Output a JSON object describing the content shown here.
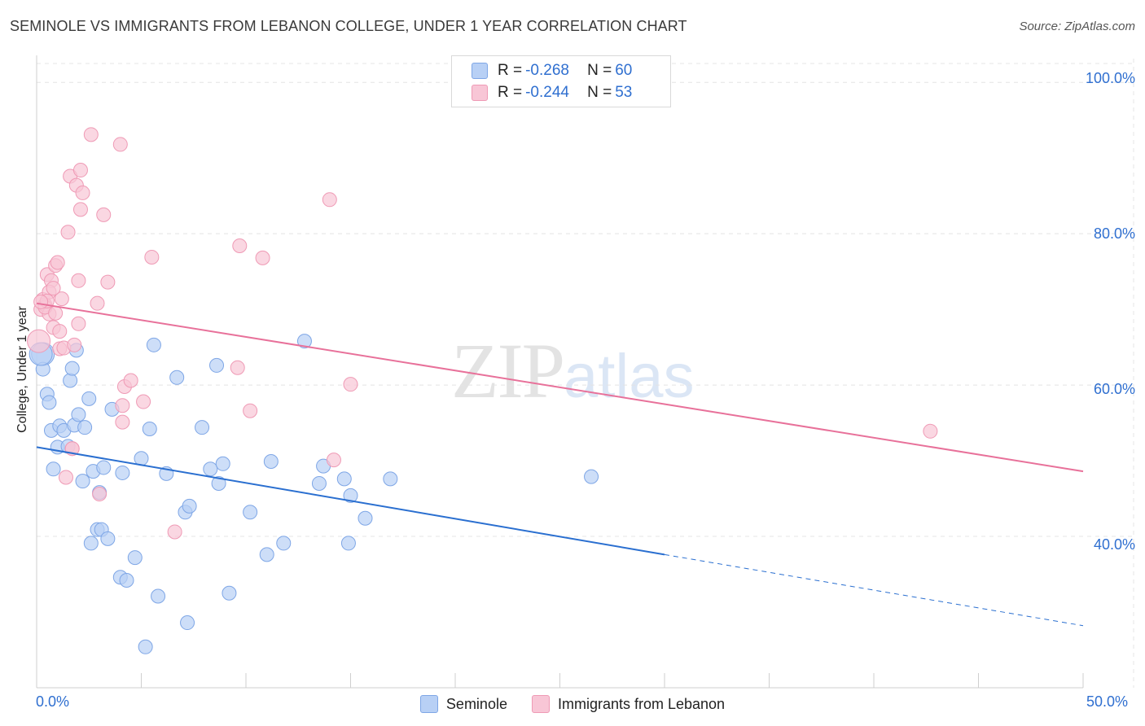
{
  "title": "SEMINOLE VS IMMIGRANTS FROM LEBANON COLLEGE, UNDER 1 YEAR CORRELATION CHART",
  "source": "Source: ZipAtlas.com",
  "watermark": {
    "zip": "ZIP",
    "atlas": "atlas"
  },
  "legend": {
    "r_label": "R =",
    "n_label": "N =",
    "rows": [
      {
        "r": "-0.268",
        "n": "60"
      },
      {
        "r": "-0.244",
        "n": "53"
      }
    ]
  },
  "bottom_legend": [
    "Seminole",
    "Immigrants from Lebanon"
  ],
  "colors": {
    "blue_fill": "#b8d0f5",
    "blue_stroke": "#7ea6e6",
    "blue_line": "#2a6fd0",
    "pink_fill": "#f8c6d6",
    "pink_stroke": "#ef9ab5",
    "pink_line": "#e8719a",
    "grid": "#e4e4e4",
    "tick_text": "#2f6fd0"
  },
  "chart_data": {
    "type": "scatter",
    "title": "SEMINOLE VS IMMIGRANTS FROM LEBANON COLLEGE, UNDER 1 YEAR CORRELATION CHART",
    "xlabel": "",
    "ylabel": "College, Under 1 year",
    "xlim": [
      0,
      50
    ],
    "ylim": [
      20,
      104
    ],
    "x_tick_labels": [
      "0.0%",
      "50.0%"
    ],
    "y_ticks": [
      40,
      60,
      80,
      100
    ],
    "y_tick_labels": [
      "40.0%",
      "60.0%",
      "80.0%",
      "100.0%"
    ],
    "series": [
      {
        "name": "Seminole",
        "r": -0.268,
        "n": 60,
        "trend": {
          "x0": 0,
          "y0": 51.8,
          "x1": 30,
          "y1": 37.6,
          "dashed_to_x": 50,
          "dashed_to_y": 28.2
        },
        "points": [
          [
            0.3,
            64.1
          ],
          [
            0.3,
            62.1
          ],
          [
            0.5,
            58.8
          ],
          [
            0.6,
            57.7
          ],
          [
            0.7,
            54.0
          ],
          [
            0.8,
            48.9
          ],
          [
            1.0,
            51.8
          ],
          [
            1.1,
            54.6
          ],
          [
            1.3,
            54.0
          ],
          [
            1.5,
            51.9
          ],
          [
            1.6,
            60.6
          ],
          [
            1.7,
            62.2
          ],
          [
            1.8,
            54.7
          ],
          [
            1.9,
            64.6
          ],
          [
            2.0,
            56.1
          ],
          [
            2.2,
            47.3
          ],
          [
            2.3,
            54.4
          ],
          [
            2.5,
            58.2
          ],
          [
            2.6,
            39.1
          ],
          [
            2.7,
            48.6
          ],
          [
            2.9,
            40.9
          ],
          [
            3.0,
            45.8
          ],
          [
            3.1,
            40.9
          ],
          [
            3.2,
            49.1
          ],
          [
            3.4,
            39.7
          ],
          [
            3.6,
            56.8
          ],
          [
            4.0,
            34.6
          ],
          [
            4.1,
            48.4
          ],
          [
            4.3,
            34.2
          ],
          [
            4.7,
            37.2
          ],
          [
            5.0,
            50.3
          ],
          [
            5.2,
            25.4
          ],
          [
            5.4,
            54.2
          ],
          [
            5.6,
            65.3
          ],
          [
            5.8,
            32.1
          ],
          [
            6.2,
            48.3
          ],
          [
            6.7,
            61.0
          ],
          [
            7.1,
            43.2
          ],
          [
            7.2,
            28.6
          ],
          [
            7.3,
            44.0
          ],
          [
            7.9,
            54.4
          ],
          [
            8.3,
            48.9
          ],
          [
            8.6,
            62.6
          ],
          [
            8.7,
            47.0
          ],
          [
            8.9,
            49.6
          ],
          [
            9.2,
            32.5
          ],
          [
            10.2,
            43.2
          ],
          [
            11.0,
            37.6
          ],
          [
            11.2,
            49.9
          ],
          [
            11.8,
            39.1
          ],
          [
            12.8,
            65.8
          ],
          [
            13.5,
            47.0
          ],
          [
            13.7,
            49.3
          ],
          [
            14.7,
            47.6
          ],
          [
            14.9,
            39.1
          ],
          [
            15.0,
            45.4
          ],
          [
            15.7,
            42.4
          ],
          [
            16.9,
            47.6
          ],
          [
            26.5,
            47.9
          ],
          [
            0.2,
            64.1
          ]
        ]
      },
      {
        "name": "Immigrants from Lebanon",
        "r": -0.244,
        "n": 53,
        "trend": {
          "x0": 0,
          "y0": 70.8,
          "x1": 50,
          "y1": 48.6
        },
        "points": [
          [
            0.1,
            65.8
          ],
          [
            0.2,
            70.0
          ],
          [
            0.3,
            71.3
          ],
          [
            0.4,
            70.6
          ],
          [
            0.5,
            74.6
          ],
          [
            0.6,
            69.4
          ],
          [
            0.7,
            73.8
          ],
          [
            0.8,
            67.6
          ],
          [
            0.9,
            75.8
          ],
          [
            1.0,
            76.2
          ],
          [
            1.1,
            64.8
          ],
          [
            1.2,
            71.4
          ],
          [
            1.3,
            64.9
          ],
          [
            1.4,
            47.8
          ],
          [
            1.5,
            80.2
          ],
          [
            1.6,
            87.6
          ],
          [
            1.7,
            51.6
          ],
          [
            1.8,
            65.3
          ],
          [
            1.9,
            86.4
          ],
          [
            2.0,
            73.8
          ],
          [
            2.0,
            68.1
          ],
          [
            2.1,
            88.4
          ],
          [
            2.1,
            83.2
          ],
          [
            2.2,
            85.4
          ],
          [
            2.6,
            93.1
          ],
          [
            2.9,
            70.8
          ],
          [
            3.0,
            45.6
          ],
          [
            3.2,
            82.5
          ],
          [
            3.4,
            73.6
          ],
          [
            4.0,
            91.8
          ],
          [
            4.1,
            57.3
          ],
          [
            4.1,
            55.1
          ],
          [
            4.2,
            59.8
          ],
          [
            4.5,
            60.6
          ],
          [
            5.1,
            57.8
          ],
          [
            5.5,
            76.9
          ],
          [
            6.6,
            40.6
          ],
          [
            9.6,
            62.3
          ],
          [
            9.7,
            78.4
          ],
          [
            10.2,
            56.6
          ],
          [
            10.8,
            76.8
          ],
          [
            14.0,
            84.5
          ],
          [
            14.2,
            50.1
          ],
          [
            15.0,
            60.1
          ],
          [
            42.7,
            53.9
          ],
          [
            0.4,
            70.3
          ],
          [
            0.6,
            72.3
          ],
          [
            0.9,
            69.5
          ],
          [
            1.7,
            51.6
          ],
          [
            1.1,
            67.1
          ],
          [
            0.5,
            71.1
          ],
          [
            0.2,
            71.0
          ],
          [
            0.8,
            72.8
          ]
        ]
      }
    ]
  }
}
